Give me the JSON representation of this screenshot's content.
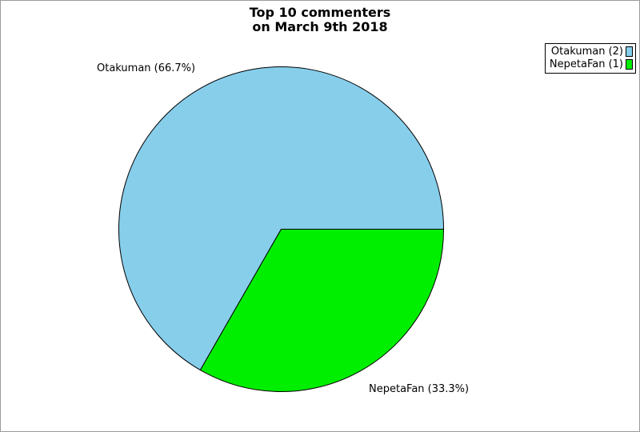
{
  "window": {
    "background": "#FFFFFF",
    "frame_border_color": "#9B9B9B"
  },
  "chart_data": {
    "type": "pie",
    "title": "Top 10 commenters on March 9th 2018",
    "title_lines": [
      "Top 10 commenters",
      "on March 9th 2018"
    ],
    "slices": [
      {
        "name": "Otakuman",
        "count": 2,
        "percent": 66.7,
        "label": "Otakuman (66.7%)",
        "color": "#87CEEB"
      },
      {
        "name": "NepetaFan",
        "count": 1,
        "percent": 33.3,
        "label": "NepetaFan (33.3%)",
        "color": "#00EE00"
      }
    ],
    "legend": [
      {
        "label": "Otakuman (2)",
        "color": "#87CEEB"
      },
      {
        "label": "NepetaFan (1)",
        "color": "#00EE00"
      }
    ],
    "legend_position": "top-right",
    "legend_border_color": "#000000",
    "start_angle_deg": 0,
    "direction": "counterclockwise",
    "slice_stroke_color": "#000000",
    "label_position": "outside"
  }
}
